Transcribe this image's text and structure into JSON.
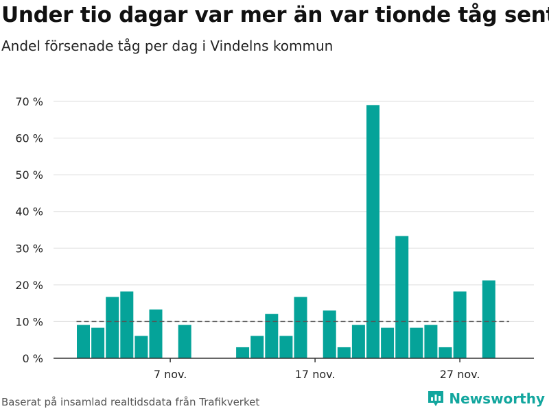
{
  "title": "Under tio dagar var mer än var tionde tåg sent",
  "subtitle": "Andel försenade tåg per dag i Vindelns kommun",
  "footer": "Baserat på insamlad realtidsdata från Trafikverket",
  "brand": {
    "name": "Newsworthy",
    "icon": "bar-chart-logo-icon",
    "color": "#12a69e"
  },
  "colors": {
    "bar": "#05a399",
    "reference_line": "#555555",
    "grid": "#dddddd"
  },
  "chart_data": {
    "type": "bar",
    "title": "Under tio dagar var mer än var tionde tåg sent",
    "subtitle": "Andel försenade tåg per dag i Vindelns kommun",
    "unit": "%",
    "x": [
      "2020-11-01",
      "2020-11-02",
      "2020-11-03",
      "2020-11-04",
      "2020-11-05",
      "2020-11-06",
      "2020-11-07",
      "2020-11-08",
      "2020-11-09",
      "2020-11-10",
      "2020-11-11",
      "2020-11-12",
      "2020-11-13",
      "2020-11-14",
      "2020-11-15",
      "2020-11-16",
      "2020-11-17",
      "2020-11-18",
      "2020-11-19",
      "2020-11-20",
      "2020-11-21",
      "2020-11-22",
      "2020-11-23",
      "2020-11-24",
      "2020-11-25",
      "2020-11-26",
      "2020-11-27",
      "2020-11-28",
      "2020-11-29",
      "2020-11-30"
    ],
    "values": [
      9.1,
      8.3,
      16.7,
      18.2,
      6.1,
      13.3,
      null,
      9.1,
      null,
      null,
      null,
      3.0,
      6.1,
      12.1,
      6.1,
      16.7,
      null,
      13.0,
      3.0,
      9.1,
      69.0,
      8.3,
      33.3,
      8.3,
      9.1,
      3.0,
      18.2,
      null,
      21.2,
      null
    ],
    "xticks": [
      {
        "index": 6,
        "label": "7 nov."
      },
      {
        "index": 16,
        "label": "17 nov."
      },
      {
        "index": 26,
        "label": "27 nov."
      }
    ],
    "yticks": [
      {
        "value": 0,
        "label": "0 %"
      },
      {
        "value": 10,
        "label": "10 %"
      },
      {
        "value": 20,
        "label": "20 %"
      },
      {
        "value": 30,
        "label": "30 %"
      },
      {
        "value": 40,
        "label": "40 %"
      },
      {
        "value": 50,
        "label": "50 %"
      },
      {
        "value": 60,
        "label": "60 %"
      },
      {
        "value": 70,
        "label": "70 %"
      }
    ],
    "ylim": [
      0,
      70
    ],
    "reference_line": {
      "value": 10,
      "style": "dashed"
    },
    "grid": true,
    "legend": "none"
  }
}
